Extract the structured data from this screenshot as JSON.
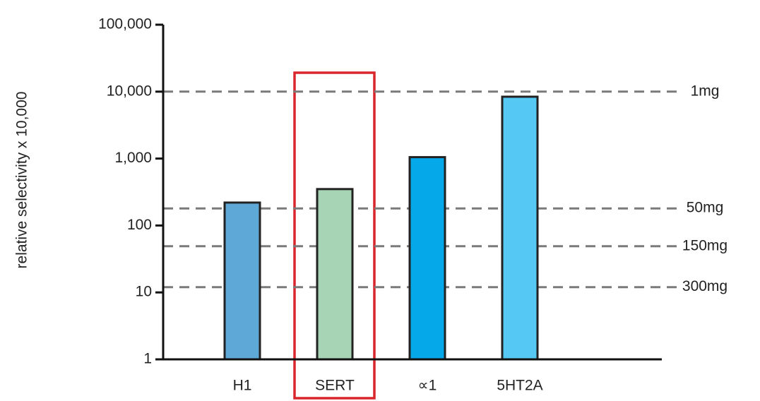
{
  "chart_data": {
    "type": "bar",
    "y_label": "relative selectivity x 10,000",
    "categories": [
      "H1",
      "SERT",
      "∝1",
      "5HT2A"
    ],
    "values": [
      220,
      350,
      1050,
      8400
    ],
    "colors": [
      "#5ea8d8",
      "#a6d4b4",
      "#05a8e8",
      "#56c8f4"
    ],
    "log_scale": true,
    "ylim": [
      1,
      100000
    ],
    "yticks": [
      1,
      10,
      100,
      {
        "value": 1000,
        "label": "1,000"
      },
      {
        "value": 10000,
        "label": "10,000"
      },
      {
        "value": 100000,
        "label": "100,000"
      }
    ],
    "reference_lines": [
      {
        "label": "1mg",
        "value": 10000
      },
      {
        "label": "50mg",
        "value": 180
      },
      {
        "label": "150mg",
        "value": 49
      },
      {
        "label": "300mg",
        "value": 12
      }
    ]
  }
}
